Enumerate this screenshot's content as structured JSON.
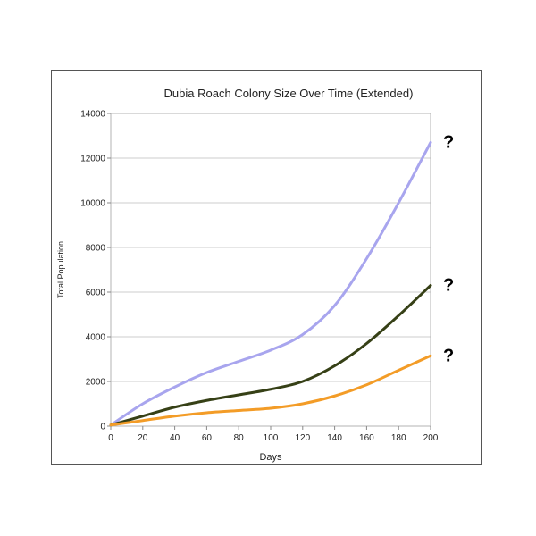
{
  "chart_data": {
    "type": "line",
    "title": "Dubia Roach Colony Size Over Time (Extended)",
    "xlabel": "Days",
    "ylabel": "Total Population",
    "xlim": [
      0,
      200
    ],
    "ylim": [
      0,
      14000
    ],
    "x_ticks": [
      0,
      20,
      40,
      60,
      80,
      100,
      120,
      140,
      160,
      180,
      200
    ],
    "y_ticks": [
      0,
      2000,
      4000,
      6000,
      8000,
      10000,
      12000,
      14000
    ],
    "grid": true,
    "legend": "none",
    "x": [
      0,
      20,
      40,
      60,
      80,
      100,
      120,
      140,
      160,
      180,
      200
    ],
    "series": [
      {
        "color": "#a8a5ee",
        "end_marker": "?",
        "values": [
          50,
          1000,
          1750,
          2400,
          2900,
          3400,
          4100,
          5400,
          7500,
          10000,
          12700
        ]
      },
      {
        "color": "#364016",
        "end_marker": "?",
        "values": [
          50,
          450,
          850,
          1150,
          1400,
          1650,
          2000,
          2700,
          3700,
          4950,
          6300
        ]
      },
      {
        "color": "#f39c27",
        "end_marker": "?",
        "values": [
          50,
          250,
          450,
          600,
          700,
          800,
          1000,
          1350,
          1850,
          2500,
          3150
        ]
      }
    ]
  }
}
